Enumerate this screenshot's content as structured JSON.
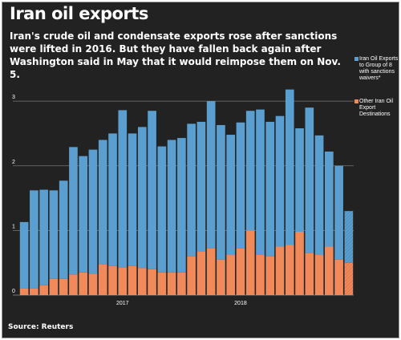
{
  "title": "Iran oil exports",
  "subtitle": "Iran's crude oil and condensate exports rose after sanctions were lifted in 2016. But they have fallen back again after Washington said in May that it would reimpose them on Nov. 5.",
  "source": "Source: Reuters",
  "colors": {
    "background": "#222222",
    "blue": "#5a9fd0",
    "orange": "#f08a5a",
    "grid": "#777777",
    "text": "#ffffff"
  },
  "chart_data": {
    "type": "bar",
    "stacked": true,
    "title": "Iran oil exports",
    "subtitle": "Iran's crude oil and condensate exports rose after sanctions were lifted in 2016. But they have fallen back again after Washington said in May that it would reimpose them on Nov. 5.",
    "ylim": [
      0,
      3.2
    ],
    "yticks": [
      "0",
      "1",
      "2",
      "3"
    ],
    "grid": true,
    "legend_position": "right",
    "x_labels": [
      "2017",
      "2018"
    ],
    "x_label_positions": [
      10,
      22
    ],
    "series": [
      {
        "name": "Other Iran Oil Export Destinations",
        "color": "#f08a5a",
        "values": [
          0.1,
          0.1,
          0.15,
          0.25,
          0.25,
          0.32,
          0.35,
          0.33,
          0.48,
          0.45,
          0.43,
          0.45,
          0.42,
          0.4,
          0.35,
          0.35,
          0.35,
          0.6,
          0.68,
          0.72,
          0.55,
          0.62,
          0.72,
          1.0,
          0.62,
          0.6,
          0.75,
          0.78,
          0.98,
          0.65,
          0.62,
          0.75,
          0.55,
          0.5
        ]
      },
      {
        "name": "Iran Oil Exports to Group of 8 with sanctions waivers*",
        "color": "#5a9fd0",
        "values": [
          1.03,
          1.52,
          1.48,
          1.37,
          1.52,
          1.97,
          1.8,
          1.92,
          1.92,
          2.05,
          2.43,
          2.05,
          2.18,
          2.45,
          1.95,
          2.05,
          2.08,
          2.05,
          2.0,
          2.28,
          2.08,
          1.86,
          1.95,
          1.85,
          2.25,
          2.08,
          2.02,
          2.4,
          1.6,
          2.25,
          1.85,
          1.47,
          1.45,
          0.8
        ]
      }
    ]
  }
}
